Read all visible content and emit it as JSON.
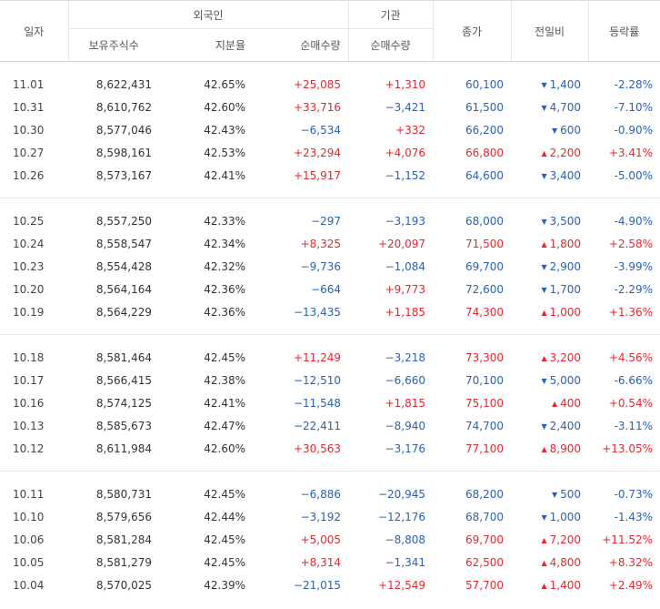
{
  "headers": {
    "date": "일자",
    "foreign": "외국인",
    "institution": "기관",
    "holdings": "보유주식수",
    "ratio": "지분율",
    "net_foreign": "순매수량",
    "net_inst": "순매수량",
    "close": "종가",
    "change": "전일비",
    "rate": "등락률"
  },
  "groups": [
    [
      {
        "date": "11.01",
        "holdings": "8,622,431",
        "ratio": "42.65%",
        "foreign": "+25,085",
        "foreign_dir": "up",
        "inst": "+1,310",
        "inst_dir": "up",
        "close": "60,100",
        "close_dir": "dn",
        "change": "1,400",
        "change_dir": "dn",
        "rate": "-2.28%",
        "rate_dir": "dn"
      },
      {
        "date": "10.31",
        "holdings": "8,610,762",
        "ratio": "42.60%",
        "foreign": "+33,716",
        "foreign_dir": "up",
        "inst": "−3,421",
        "inst_dir": "dn",
        "close": "61,500",
        "close_dir": "dn",
        "change": "4,700",
        "change_dir": "dn",
        "rate": "-7.10%",
        "rate_dir": "dn"
      },
      {
        "date": "10.30",
        "holdings": "8,577,046",
        "ratio": "42.43%",
        "foreign": "−6,534",
        "foreign_dir": "dn",
        "inst": "+332",
        "inst_dir": "up",
        "close": "66,200",
        "close_dir": "dn",
        "change": "600",
        "change_dir": "dn",
        "rate": "-0.90%",
        "rate_dir": "dn"
      },
      {
        "date": "10.27",
        "holdings": "8,598,161",
        "ratio": "42.53%",
        "foreign": "+23,294",
        "foreign_dir": "up",
        "inst": "+4,076",
        "inst_dir": "up",
        "close": "66,800",
        "close_dir": "up",
        "change": "2,200",
        "change_dir": "up",
        "rate": "+3.41%",
        "rate_dir": "up"
      },
      {
        "date": "10.26",
        "holdings": "8,573,167",
        "ratio": "42.41%",
        "foreign": "+15,917",
        "foreign_dir": "up",
        "inst": "−1,152",
        "inst_dir": "dn",
        "close": "64,600",
        "close_dir": "dn",
        "change": "3,400",
        "change_dir": "dn",
        "rate": "-5.00%",
        "rate_dir": "dn"
      }
    ],
    [
      {
        "date": "10.25",
        "holdings": "8,557,250",
        "ratio": "42.33%",
        "foreign": "−297",
        "foreign_dir": "dn",
        "inst": "−3,193",
        "inst_dir": "dn",
        "close": "68,000",
        "close_dir": "dn",
        "change": "3,500",
        "change_dir": "dn",
        "rate": "-4.90%",
        "rate_dir": "dn"
      },
      {
        "date": "10.24",
        "holdings": "8,558,547",
        "ratio": "42.34%",
        "foreign": "+8,325",
        "foreign_dir": "up",
        "inst": "+20,097",
        "inst_dir": "up",
        "close": "71,500",
        "close_dir": "up",
        "change": "1,800",
        "change_dir": "up",
        "rate": "+2.58%",
        "rate_dir": "up"
      },
      {
        "date": "10.23",
        "holdings": "8,554,428",
        "ratio": "42.32%",
        "foreign": "−9,736",
        "foreign_dir": "dn",
        "inst": "−1,084",
        "inst_dir": "dn",
        "close": "69,700",
        "close_dir": "dn",
        "change": "2,900",
        "change_dir": "dn",
        "rate": "-3.99%",
        "rate_dir": "dn"
      },
      {
        "date": "10.20",
        "holdings": "8,564,164",
        "ratio": "42.36%",
        "foreign": "−664",
        "foreign_dir": "dn",
        "inst": "+9,773",
        "inst_dir": "up",
        "close": "72,600",
        "close_dir": "dn",
        "change": "1,700",
        "change_dir": "dn",
        "rate": "-2.29%",
        "rate_dir": "dn"
      },
      {
        "date": "10.19",
        "holdings": "8,564,229",
        "ratio": "42.36%",
        "foreign": "−13,435",
        "foreign_dir": "dn",
        "inst": "+1,185",
        "inst_dir": "up",
        "close": "74,300",
        "close_dir": "up",
        "change": "1,000",
        "change_dir": "up",
        "rate": "+1.36%",
        "rate_dir": "up"
      }
    ],
    [
      {
        "date": "10.18",
        "holdings": "8,581,464",
        "ratio": "42.45%",
        "foreign": "+11,249",
        "foreign_dir": "up",
        "inst": "−3,218",
        "inst_dir": "dn",
        "close": "73,300",
        "close_dir": "up",
        "change": "3,200",
        "change_dir": "up",
        "rate": "+4.56%",
        "rate_dir": "up"
      },
      {
        "date": "10.17",
        "holdings": "8,566,415",
        "ratio": "42.38%",
        "foreign": "−12,510",
        "foreign_dir": "dn",
        "inst": "−6,660",
        "inst_dir": "dn",
        "close": "70,100",
        "close_dir": "dn",
        "change": "5,000",
        "change_dir": "dn",
        "rate": "-6.66%",
        "rate_dir": "dn"
      },
      {
        "date": "10.16",
        "holdings": "8,574,125",
        "ratio": "42.41%",
        "foreign": "−11,548",
        "foreign_dir": "dn",
        "inst": "+1,815",
        "inst_dir": "up",
        "close": "75,100",
        "close_dir": "up",
        "change": "400",
        "change_dir": "up",
        "rate": "+0.54%",
        "rate_dir": "up"
      },
      {
        "date": "10.13",
        "holdings": "8,585,673",
        "ratio": "42.47%",
        "foreign": "−22,411",
        "foreign_dir": "dn",
        "inst": "−8,940",
        "inst_dir": "dn",
        "close": "74,700",
        "close_dir": "dn",
        "change": "2,400",
        "change_dir": "dn",
        "rate": "-3.11%",
        "rate_dir": "dn"
      },
      {
        "date": "10.12",
        "holdings": "8,611,984",
        "ratio": "42.60%",
        "foreign": "+30,563",
        "foreign_dir": "up",
        "inst": "−3,176",
        "inst_dir": "dn",
        "close": "77,100",
        "close_dir": "up",
        "change": "8,900",
        "change_dir": "up",
        "rate": "+13.05%",
        "rate_dir": "up"
      }
    ],
    [
      {
        "date": "10.11",
        "holdings": "8,580,731",
        "ratio": "42.45%",
        "foreign": "−6,886",
        "foreign_dir": "dn",
        "inst": "−20,945",
        "inst_dir": "dn",
        "close": "68,200",
        "close_dir": "dn",
        "change": "500",
        "change_dir": "dn",
        "rate": "-0.73%",
        "rate_dir": "dn"
      },
      {
        "date": "10.10",
        "holdings": "8,579,656",
        "ratio": "42.44%",
        "foreign": "−3,192",
        "foreign_dir": "dn",
        "inst": "−12,176",
        "inst_dir": "dn",
        "close": "68,700",
        "close_dir": "dn",
        "change": "1,000",
        "change_dir": "dn",
        "rate": "-1.43%",
        "rate_dir": "dn"
      },
      {
        "date": "10.06",
        "holdings": "8,581,284",
        "ratio": "42.45%",
        "foreign": "+5,005",
        "foreign_dir": "up",
        "inst": "−8,808",
        "inst_dir": "dn",
        "close": "69,700",
        "close_dir": "up",
        "change": "7,200",
        "change_dir": "up",
        "rate": "+11.52%",
        "rate_dir": "up"
      },
      {
        "date": "10.05",
        "holdings": "8,581,279",
        "ratio": "42.45%",
        "foreign": "+8,314",
        "foreign_dir": "up",
        "inst": "−1,341",
        "inst_dir": "dn",
        "close": "62,500",
        "close_dir": "up",
        "change": "4,800",
        "change_dir": "up",
        "rate": "+8.32%",
        "rate_dir": "up"
      },
      {
        "date": "10.04",
        "holdings": "8,570,025",
        "ratio": "42.39%",
        "foreign": "−21,015",
        "foreign_dir": "dn",
        "inst": "+12,549",
        "inst_dir": "up",
        "close": "57,700",
        "close_dir": "up",
        "change": "1,400",
        "change_dir": "up",
        "rate": "+2.49%",
        "rate_dir": "up"
      }
    ]
  ]
}
